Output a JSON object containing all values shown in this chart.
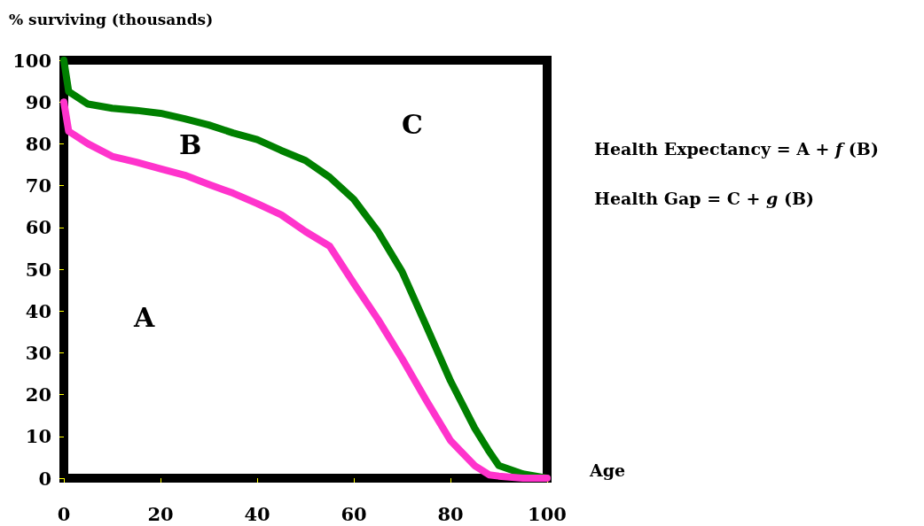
{
  "chart_data": {
    "type": "line",
    "ylabel": "% surviving (thousands)",
    "xlabel": "Age",
    "xlim": [
      0,
      100
    ],
    "xticks": [
      0,
      20,
      40,
      60,
      80,
      100
    ],
    "ylim": [
      0,
      100
    ],
    "yticks": [
      0,
      10,
      20,
      30,
      40,
      50,
      60,
      70,
      80,
      90,
      100
    ],
    "grid": false,
    "marker": "none",
    "line_style": "solid",
    "series": [
      {
        "color": "#008000",
        "x": [
          0,
          1,
          5,
          10,
          15,
          20,
          25,
          30,
          35,
          40,
          45,
          50,
          55,
          60,
          65,
          70,
          75,
          80,
          85,
          88,
          90,
          95,
          100
        ],
        "values": [
          100,
          92.5,
          89.5,
          88.5,
          88,
          87.3,
          86,
          84.5,
          82.6,
          81,
          78.4,
          76,
          72,
          66.7,
          59,
          49.4,
          36.4,
          23.3,
          12,
          6.4,
          3,
          1,
          0
        ]
      },
      {
        "color": "#ff33cc",
        "x": [
          0,
          1,
          5,
          10,
          15,
          20,
          25,
          30,
          35,
          40,
          45,
          50,
          55,
          60,
          65,
          70,
          75,
          80,
          85,
          88,
          90,
          95,
          100
        ],
        "values": [
          90,
          83,
          80,
          77,
          75.6,
          74,
          72.5,
          70.3,
          68.2,
          65.7,
          63,
          59,
          55.5,
          46.6,
          38,
          28.6,
          18.6,
          9,
          3,
          0.8,
          0.5,
          0,
          0
        ]
      }
    ],
    "annotations": [
      "A",
      "B",
      "C",
      "Health Expectancy = A + f (B)",
      "Health Gap = C + g (B)"
    ]
  }
}
